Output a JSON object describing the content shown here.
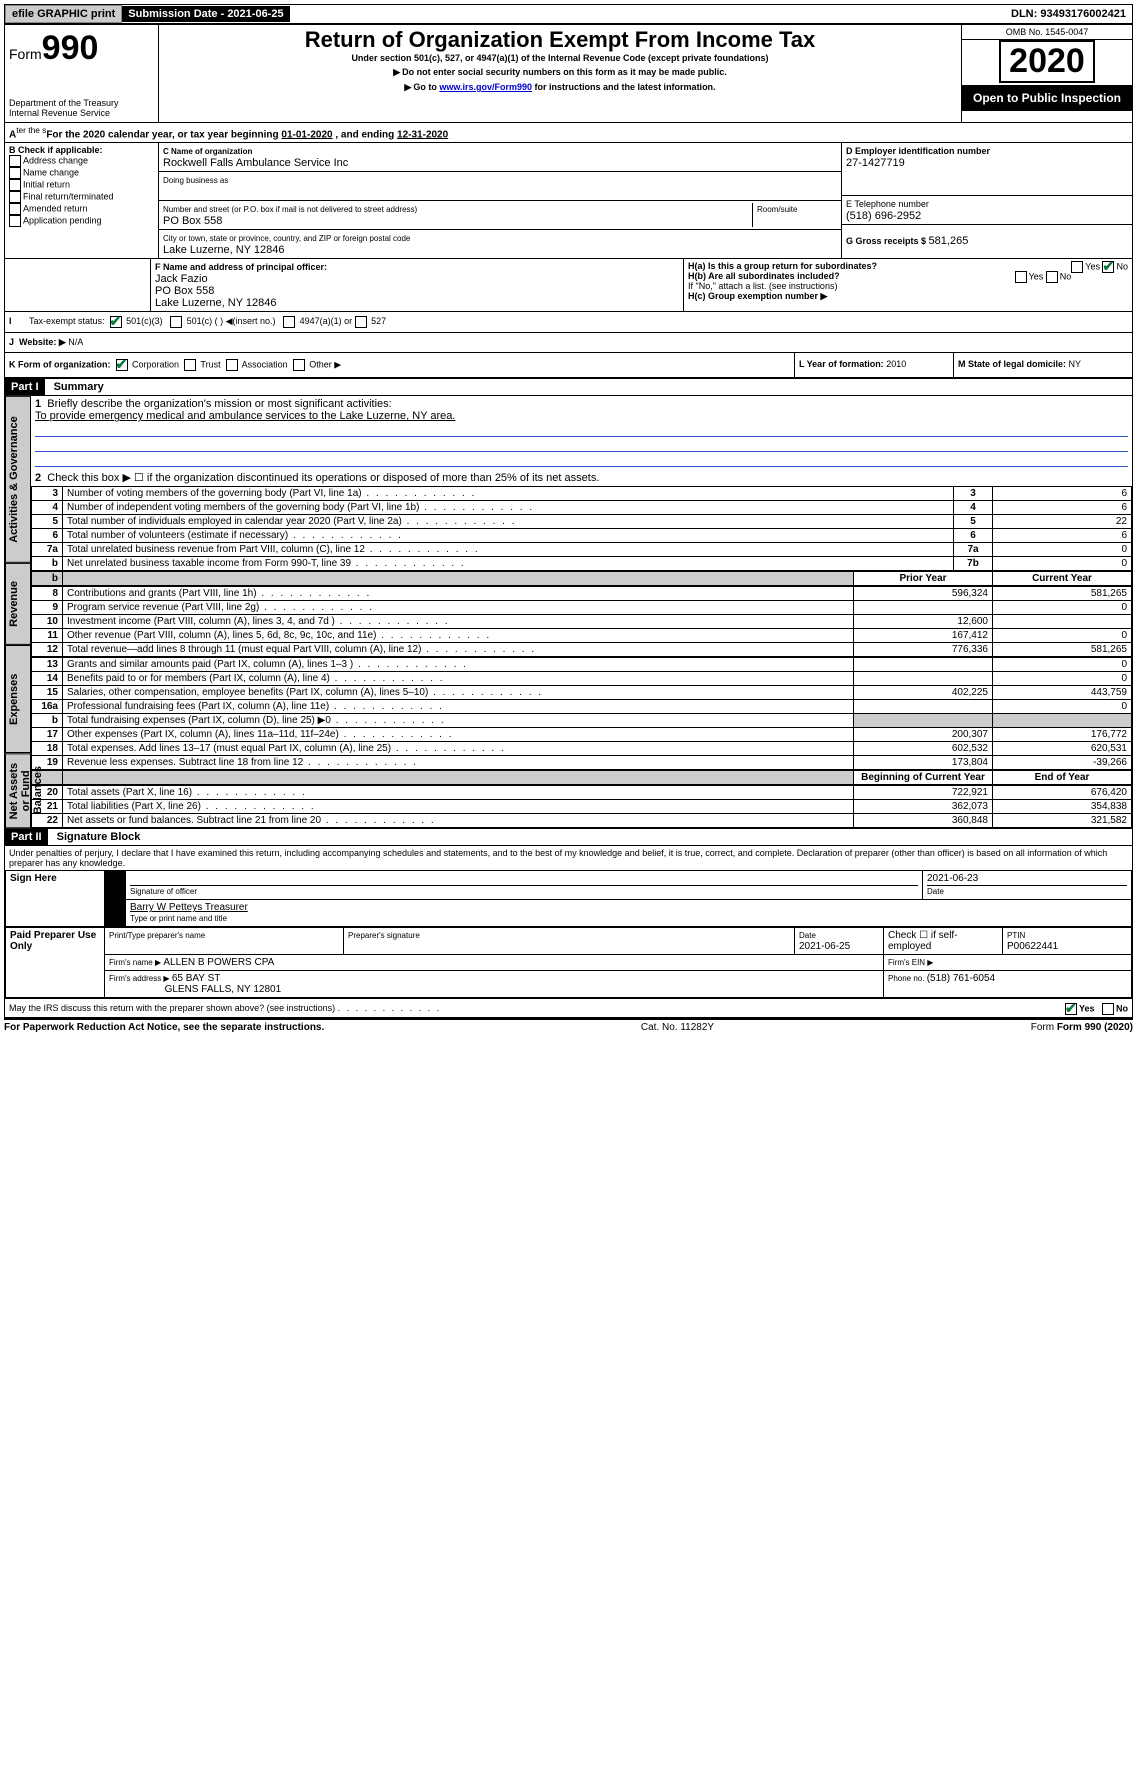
{
  "topbar": {
    "efile": "efile GRAPHIC print",
    "submission_label": "Submission Date - 2021-06-25",
    "dln": "DLN: 93493176002421"
  },
  "header": {
    "form_word": "Form",
    "form_num": "990",
    "dept": "Department of the Treasury",
    "irs": "Internal Revenue Service",
    "title": "Return of Organization Exempt From Income Tax",
    "subtitle": "Under section 501(c), 527, or 4947(a)(1) of the Internal Revenue Code (except private foundations)",
    "note1": "Do not enter social security numbers on this form as it may be made public.",
    "note2_pre": "Go to ",
    "note2_link": "www.irs.gov/Form990",
    "note2_post": " for instructions and the latest information.",
    "omb": "OMB No. 1545-0047",
    "year": "2020",
    "open": "Open to Public Inspection"
  },
  "period": {
    "text_a": "For the 2020 calendar year, or tax year beginning ",
    "begin": "01-01-2020",
    "text_b": " , and ending ",
    "end": "12-31-2020"
  },
  "boxB": {
    "title": "B Check if applicable:",
    "items": [
      "Address change",
      "Name change",
      "Initial return",
      "Final return/terminated",
      "Amended return",
      "Application pending"
    ]
  },
  "boxC": {
    "label_name": "C Name of organization",
    "name": "Rockwell Falls Ambulance Service Inc",
    "dba_label": "Doing business as",
    "addr_label": "Number and street (or P.O. box if mail is not delivered to street address)",
    "room_label": "Room/suite",
    "addr": "PO Box 558",
    "city_label": "City or town, state or province, country, and ZIP or foreign postal code",
    "city": "Lake Luzerne, NY  12846"
  },
  "boxD": {
    "label": "D Employer identification number",
    "val": "27-1427719"
  },
  "boxE": {
    "label": "E Telephone number",
    "val": "(518) 696-2952"
  },
  "boxG": {
    "label": "G Gross receipts $ ",
    "val": "581,265"
  },
  "boxF": {
    "label": "F  Name and address of principal officer:",
    "name": "Jack Fazio",
    "addr1": "PO Box 558",
    "addr2": "Lake Luzerne, NY  12846"
  },
  "boxH": {
    "a_label": "H(a)  Is this a group return for subordinates?",
    "b_label": "H(b)  Are all subordinates included?",
    "b_note": "If \"No,\" attach a list. (see instructions)",
    "c_label": "H(c)  Group exemption number ▶",
    "yes": "Yes",
    "no": "No"
  },
  "boxI": {
    "label": "Tax-exempt status:",
    "o1": "501(c)(3)",
    "o2": "501(c) (  ) ◀(insert no.)",
    "o3": "4947(a)(1) or",
    "o4": "527"
  },
  "boxJ": {
    "label": "Website: ▶",
    "val": "  N/A"
  },
  "boxK": {
    "label": "K Form of organization:",
    "corp": "Corporation",
    "trust": "Trust",
    "assoc": "Association",
    "other": "Other ▶"
  },
  "boxL": {
    "label": "L Year of formation: ",
    "val": "2010"
  },
  "boxM": {
    "label": "M State of legal domicile: ",
    "val": "NY"
  },
  "part1": {
    "header": "Part I",
    "title": "Summary",
    "line1_label": "Briefly describe the organization's mission or most significant activities:",
    "line1_val": "To provide emergency medical and ambulance services to the Lake Luzerne, NY area.",
    "line2_label": "Check this box ▶ ☐  if the organization discontinued its operations or disposed of more than 25% of its net assets.",
    "rows_gov": [
      {
        "n": "3",
        "label": "Number of voting members of the governing body (Part VI, line 1a)",
        "box": "3",
        "val": "6"
      },
      {
        "n": "4",
        "label": "Number of independent voting members of the governing body (Part VI, line 1b)",
        "box": "4",
        "val": "6"
      },
      {
        "n": "5",
        "label": "Total number of individuals employed in calendar year 2020 (Part V, line 2a)",
        "box": "5",
        "val": "22"
      },
      {
        "n": "6",
        "label": "Total number of volunteers (estimate if necessary)",
        "box": "6",
        "val": "6"
      },
      {
        "n": "7a",
        "label": "Total unrelated business revenue from Part VIII, column (C), line 12",
        "box": "7a",
        "val": "0"
      },
      {
        "n": "b",
        "label": "Net unrelated business taxable income from Form 990-T, line 39",
        "box": "7b",
        "val": "0"
      }
    ],
    "col_prior": "Prior Year",
    "col_current": "Current Year",
    "rows_rev": [
      {
        "n": "8",
        "label": "Contributions and grants (Part VIII, line 1h)",
        "p": "596,324",
        "c": "581,265"
      },
      {
        "n": "9",
        "label": "Program service revenue (Part VIII, line 2g)",
        "p": "",
        "c": "0"
      },
      {
        "n": "10",
        "label": "Investment income (Part VIII, column (A), lines 3, 4, and 7d )",
        "p": "12,600",
        "c": ""
      },
      {
        "n": "11",
        "label": "Other revenue (Part VIII, column (A), lines 5, 6d, 8c, 9c, 10c, and 11e)",
        "p": "167,412",
        "c": "0"
      },
      {
        "n": "12",
        "label": "Total revenue—add lines 8 through 11 (must equal Part VIII, column (A), line 12)",
        "p": "776,336",
        "c": "581,265"
      }
    ],
    "rows_exp": [
      {
        "n": "13",
        "label": "Grants and similar amounts paid (Part IX, column (A), lines 1–3 )",
        "p": "",
        "c": "0"
      },
      {
        "n": "14",
        "label": "Benefits paid to or for members (Part IX, column (A), line 4)",
        "p": "",
        "c": "0"
      },
      {
        "n": "15",
        "label": "Salaries, other compensation, employee benefits (Part IX, column (A), lines 5–10)",
        "p": "402,225",
        "c": "443,759"
      },
      {
        "n": "16a",
        "label": "Professional fundraising fees (Part IX, column (A), line 11e)",
        "p": "",
        "c": "0"
      },
      {
        "n": "b",
        "label": "Total fundraising expenses (Part IX, column (D), line 25) ▶0",
        "p": "gray",
        "c": "gray"
      },
      {
        "n": "17",
        "label": "Other expenses (Part IX, column (A), lines 11a–11d, 11f–24e)",
        "p": "200,307",
        "c": "176,772"
      },
      {
        "n": "18",
        "label": "Total expenses. Add lines 13–17 (must equal Part IX, column (A), line 25)",
        "p": "602,532",
        "c": "620,531"
      },
      {
        "n": "19",
        "label": "Revenue less expenses. Subtract line 18 from line 12",
        "p": "173,804",
        "c": "-39,266"
      }
    ],
    "col_begin": "Beginning of Current Year",
    "col_end": "End of Year",
    "rows_net": [
      {
        "n": "20",
        "label": "Total assets (Part X, line 16)",
        "p": "722,921",
        "c": "676,420"
      },
      {
        "n": "21",
        "label": "Total liabilities (Part X, line 26)",
        "p": "362,073",
        "c": "354,838"
      },
      {
        "n": "22",
        "label": "Net assets or fund balances. Subtract line 21 from line 20",
        "p": "360,848",
        "c": "321,582"
      }
    ],
    "tab_gov": "Activities & Governance",
    "tab_rev": "Revenue",
    "tab_exp": "Expenses",
    "tab_net": "Net Assets or Fund Balances"
  },
  "part2": {
    "header": "Part II",
    "title": "Signature Block",
    "perjury": "Under penalties of perjury, I declare that I have examined this return, including accompanying schedules and statements, and to the best of my knowledge and belief, it is true, correct, and complete. Declaration of preparer (other than officer) is based on all information of which preparer has any knowledge.",
    "sign_here": "Sign Here",
    "sig_officer": "Signature of officer",
    "sig_date": "2021-06-23",
    "date_label": "Date",
    "officer_name": "Barry W Petteys Treasurer",
    "type_name": "Type or print name and title",
    "paid": "Paid Preparer Use Only",
    "prep_name_label": "Print/Type preparer's name",
    "prep_sig_label": "Preparer's signature",
    "prep_date_label": "Date",
    "prep_date": "2021-06-25",
    "check_self": "Check ☐ if self-employed",
    "ptin_label": "PTIN",
    "ptin": "P00622441",
    "firm_name_label": "Firm's name    ▶ ",
    "firm_name": "ALLEN B POWERS CPA",
    "firm_ein": "Firm's EIN ▶",
    "firm_addr_label": "Firm's address ▶ ",
    "firm_addr1": "65 BAY ST",
    "firm_addr2": "GLENS FALLS, NY  12801",
    "firm_phone_label": "Phone no. ",
    "firm_phone": "(518) 761-6054",
    "discuss": "May the IRS discuss this return with the preparer shown above? (see instructions)",
    "yes": "Yes",
    "no": "No"
  },
  "footer": {
    "pra": "For Paperwork Reduction Act Notice, see the separate instructions.",
    "cat": "Cat. No. 11282Y",
    "form": "Form 990 (2020)"
  }
}
